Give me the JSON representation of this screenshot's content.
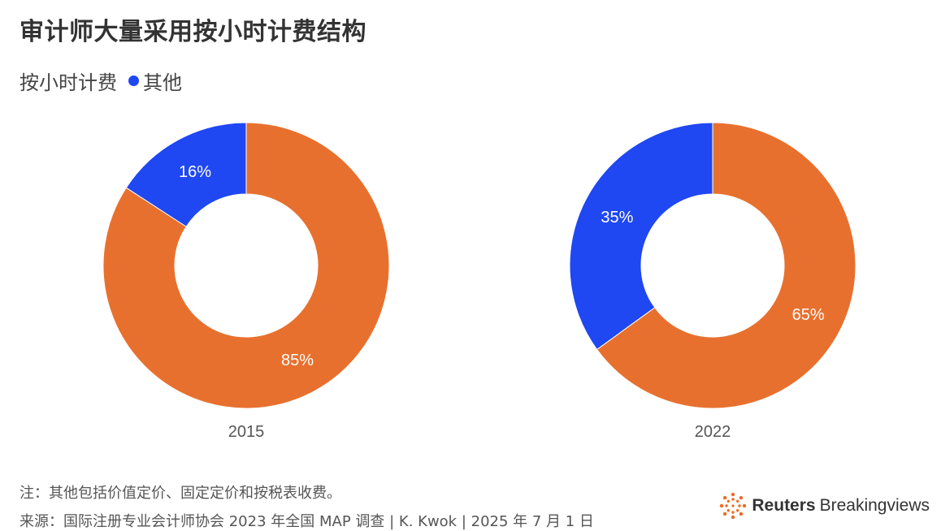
{
  "title": "审计师大量采用按小时计费结构",
  "legend": [
    {
      "label": "按小时计费",
      "color": "#E8702E"
    },
    {
      "label": "其他",
      "color": "#1F47F2"
    }
  ],
  "chart_data": [
    {
      "type": "pie",
      "label": "2015",
      "slices": [
        {
          "name": "按小时计费",
          "value": 85,
          "text": "85%"
        },
        {
          "name": "其他",
          "value": 16,
          "text": "16%"
        }
      ]
    },
    {
      "type": "pie",
      "label": "2022",
      "slices": [
        {
          "name": "按小时计费",
          "value": 65,
          "text": "65%"
        },
        {
          "name": "其他",
          "value": 35,
          "text": "35%"
        }
      ]
    }
  ],
  "footer": {
    "note": "注：其他包括价值定价、固定定价和按税表收费。",
    "source": "来源：国际注册专业会计师协会 2023 年全国 MAP 调查 | K. Kwok | 2025 年 7 月 1 日"
  },
  "logo": {
    "bold": "Reuters",
    "regular": "Breakingviews"
  }
}
